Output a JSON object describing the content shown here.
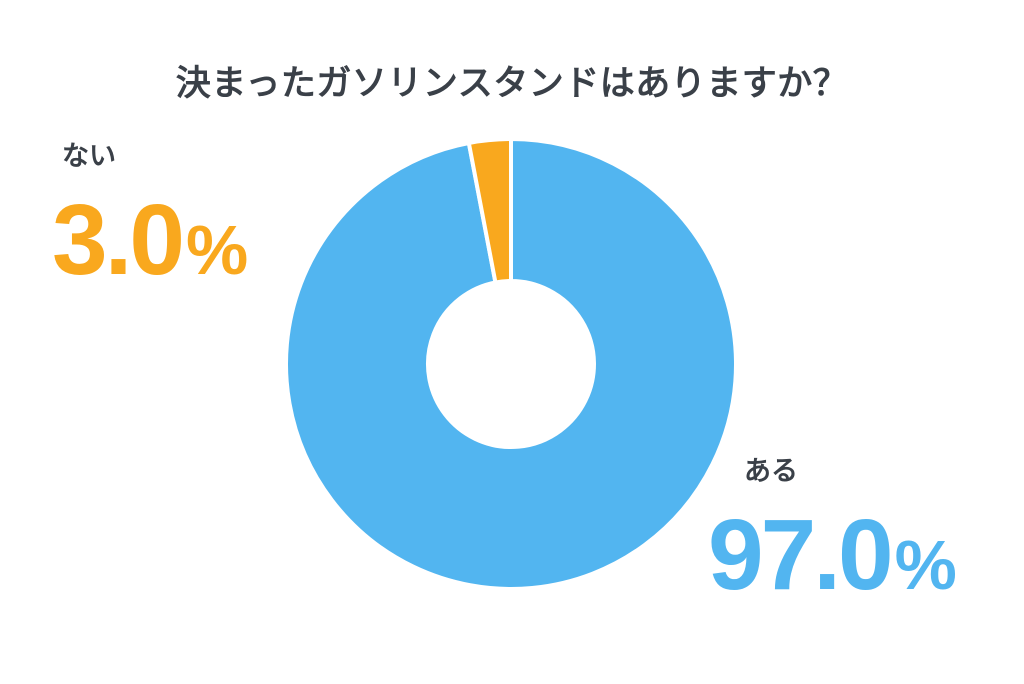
{
  "chart_data": {
    "type": "pie",
    "donut": true,
    "title": "決まったガソリンスタンドはありますか？",
    "start_angle_deg": 0,
    "direction": "clockwise",
    "inner_radius_ratio": 0.37,
    "separator_color": "#ffffff",
    "legend_position": "callout-labels",
    "slices": [
      {
        "label": "ある",
        "value": 97.0,
        "display_value": "97.0",
        "unit": "%",
        "color": "#52b5f0"
      },
      {
        "label": "ない",
        "value": 3.0,
        "display_value": "3.0",
        "unit": "%",
        "color": "#f9a81e"
      }
    ]
  },
  "text_colors": {
    "heading": "#3a4048"
  }
}
